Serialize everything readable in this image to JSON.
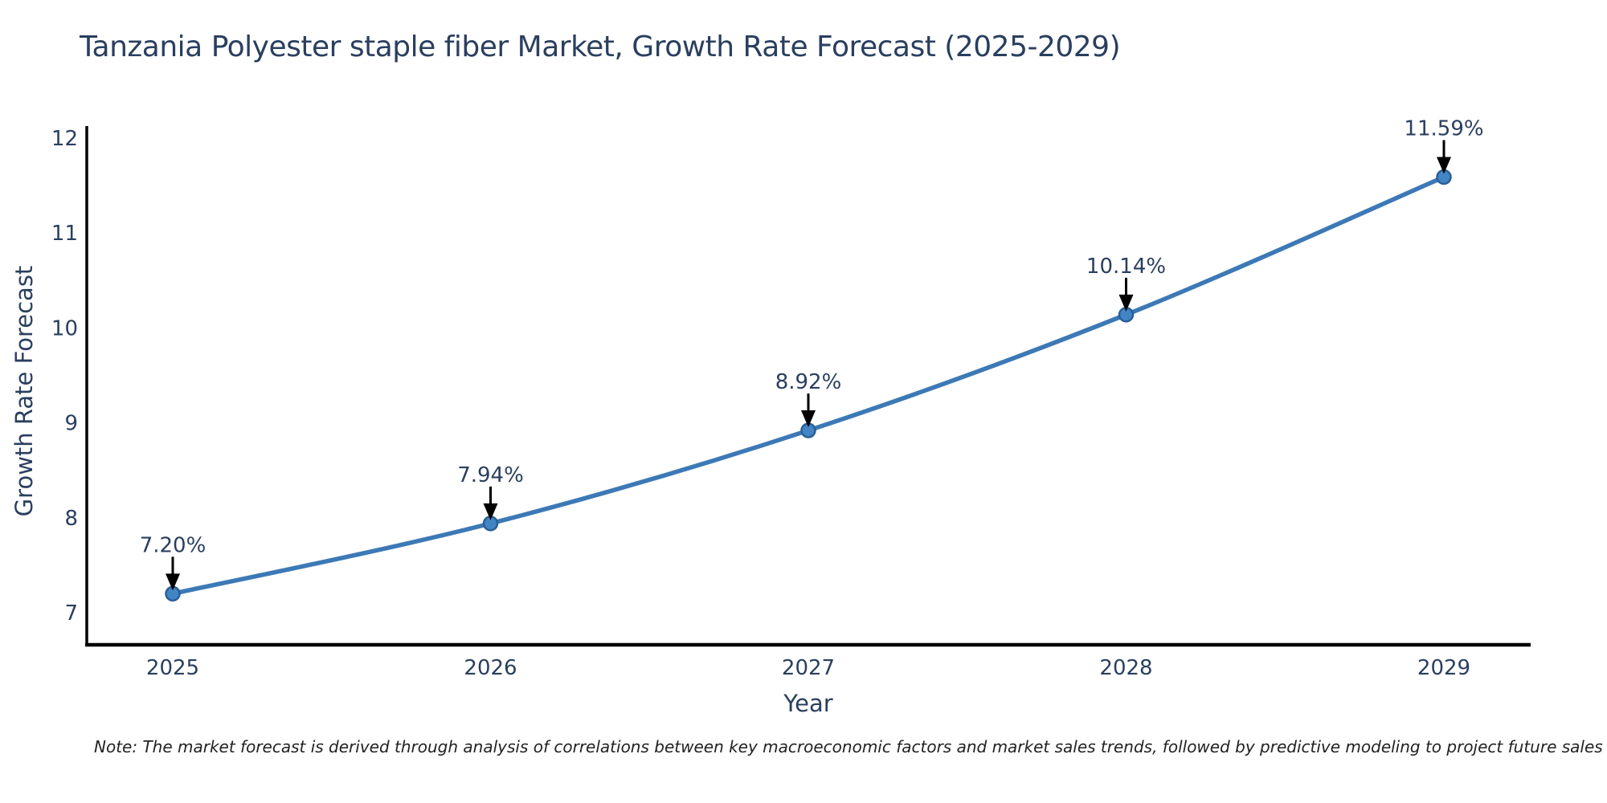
{
  "note": "Note: The market forecast is derived through analysis of correlations between key macroeconomic factors and market sales trends, followed by predictive modeling to project future sales",
  "chart_data": {
    "type": "line",
    "title": "Tanzania Polyester staple fiber Market, Growth Rate Forecast (2025-2029)",
    "xlabel": "Year",
    "ylabel": "Growth Rate Forecast",
    "categories": [
      2025,
      2026,
      2027,
      2028,
      2029
    ],
    "values": [
      7.2,
      7.94,
      8.92,
      10.14,
      11.59
    ],
    "point_labels": [
      "7.20%",
      "7.94%",
      "8.92%",
      "10.14%",
      "11.59%"
    ],
    "ylim": [
      7,
      12
    ],
    "yticks": [
      7,
      8,
      9,
      10,
      11,
      12
    ],
    "grid": false,
    "legend_position": "none",
    "colors": {
      "line": "#3c79b6",
      "marker_fill": "#4285c4",
      "marker_stroke": "#2a5f96",
      "text": "#2a3f5f",
      "axis": "#000000",
      "arrow": "#000000"
    }
  }
}
